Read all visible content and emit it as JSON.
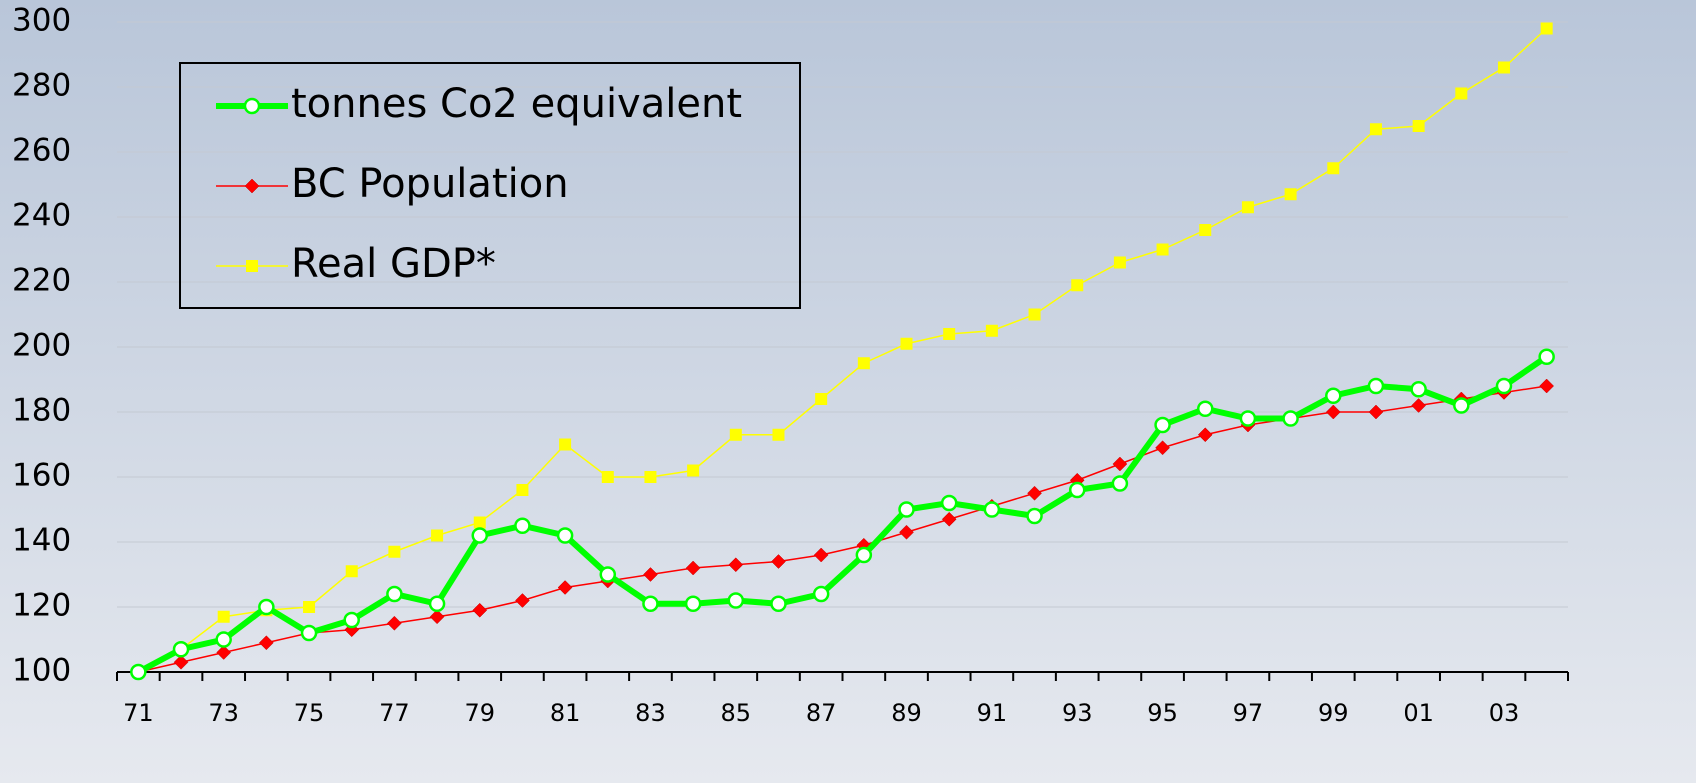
{
  "chart_data": {
    "type": "line",
    "categories": [
      "71",
      null,
      "73",
      null,
      "75",
      null,
      "77",
      null,
      "79",
      null,
      "81",
      null,
      "83",
      null,
      "85",
      null,
      "87",
      null,
      "89",
      null,
      "91",
      null,
      "93",
      null,
      "95",
      null,
      "97",
      null,
      "99",
      null,
      "01",
      null,
      "03",
      null
    ],
    "series": [
      {
        "name": "tonnes Co2 equivalent",
        "color": "#00ff00",
        "marker": "circle",
        "values": [
          100,
          107,
          110,
          120,
          112,
          116,
          124,
          121,
          142,
          145,
          142,
          130,
          121,
          121,
          122,
          121,
          124,
          136,
          150,
          152,
          150,
          148,
          156,
          158,
          176,
          181,
          178,
          178,
          185,
          188,
          187,
          182,
          188,
          197
        ]
      },
      {
        "name": "BC Population",
        "color": "#ff0000",
        "marker": "diamond",
        "values": [
          100,
          103,
          106,
          109,
          112,
          113,
          115,
          117,
          119,
          122,
          126,
          128,
          130,
          132,
          133,
          134,
          136,
          139,
          143,
          147,
          151,
          155,
          159,
          164,
          169,
          173,
          176,
          178,
          180,
          180,
          182,
          184,
          186,
          188
        ]
      },
      {
        "name": "Real GDP*",
        "color": "#ffff00",
        "marker": "square",
        "values": [
          100,
          107,
          117,
          119,
          120,
          131,
          137,
          142,
          146,
          156,
          170,
          160,
          160,
          162,
          173,
          173,
          184,
          195,
          201,
          204,
          205,
          210,
          219,
          226,
          230,
          236,
          243,
          247,
          255,
          267,
          268,
          278,
          286,
          298
        ]
      }
    ],
    "ylim": [
      100,
      300
    ],
    "yticks": [
      100,
      120,
      140,
      160,
      180,
      200,
      220,
      240,
      260,
      280,
      300
    ],
    "grid": true,
    "legend": "top-left"
  }
}
